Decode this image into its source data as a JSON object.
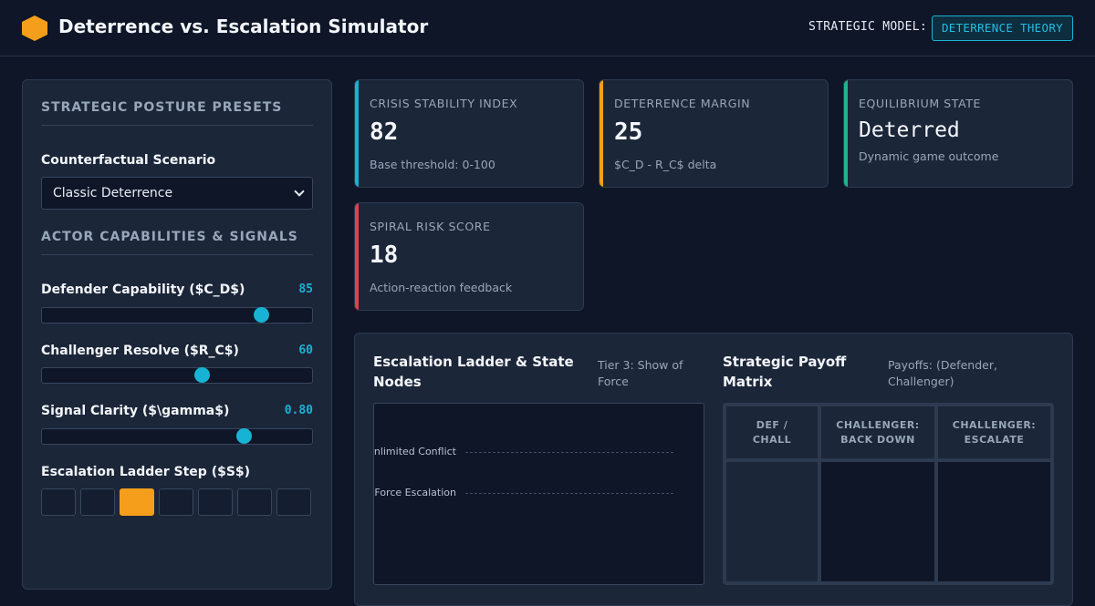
{
  "header": {
    "title": "Deterrence vs. Escalation Simulator",
    "model_label": "STRATEGIC MODEL:",
    "model_value": "DETERRENCE THEORY"
  },
  "presets": {
    "section_title": "STRATEGIC POSTURE PRESETS",
    "scenario_label": "Counterfactual Scenario",
    "scenario_value": "Classic Deterrence"
  },
  "actors": {
    "section_title": "ACTOR CAPABILITIES & SIGNALS",
    "sliders": [
      {
        "label": "Defender Capability ($C_D$)",
        "value": "85",
        "fraction": 0.81
      },
      {
        "label": "Challenger Resolve ($R_C$)",
        "value": "60",
        "fraction": 0.59
      },
      {
        "label": "Signal Clarity ($\\gamma$)",
        "value": "0.80",
        "fraction": 0.745
      }
    ],
    "step_label": "Escalation Ladder Step ($S$)",
    "steps_count": 7,
    "active_step": 3
  },
  "stats": [
    {
      "label": "CRISIS STABILITY INDEX",
      "value": "82",
      "sub": "Base threshold: 0-100",
      "color": "#18b3d4"
    },
    {
      "label": "DETERRENCE MARGIN",
      "value": "25",
      "sub": "$C_D - R_C$ delta",
      "color": "#f59e1b"
    },
    {
      "label": "EQUILIBRIUM STATE",
      "value": "Deterred",
      "sub": "Dynamic game outcome",
      "color": "#1fb58a"
    },
    {
      "label": "SPIRAL RISK SCORE",
      "value": "18",
      "sub": "Action-reaction feedback",
      "color": "#e0424c"
    }
  ],
  "ladder": {
    "title": "Escalation Ladder & State Nodes",
    "tier_note": "Tier 3: Show of Force",
    "rungs": [
      "Unlimited Conflict",
      "Force Escalation"
    ]
  },
  "payoff": {
    "title": "Strategic Payoff Matrix",
    "note": "Payoffs: (Defender, Challenger)",
    "headers": [
      "DEF / CHALL",
      "CHALLENGER: BACK DOWN",
      "CHALLENGER: ESCALATE"
    ]
  }
}
